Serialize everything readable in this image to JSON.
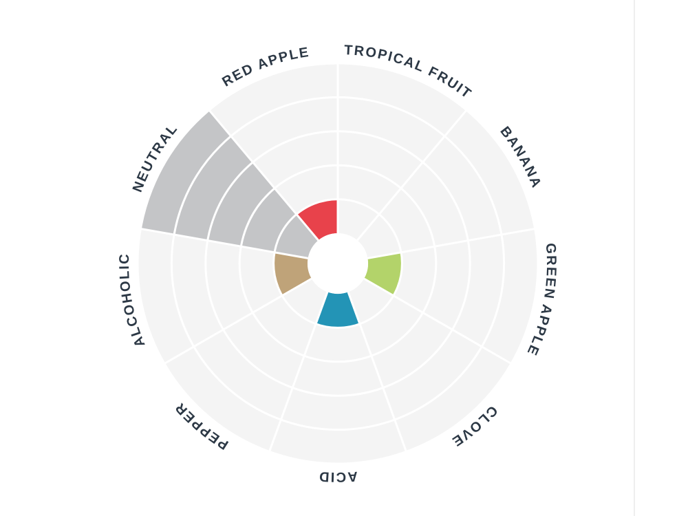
{
  "chart_data": {
    "type": "polar-bar",
    "categories": [
      "RED APPLE",
      "TROPICAL FRUIT",
      "BANANA",
      "GREEN APPLE",
      "CLOVE",
      "ACID",
      "PEPPER",
      "ALCOHOLIC",
      "NEUTRAL"
    ],
    "values": [
      1,
      0,
      0,
      1,
      0,
      1,
      0,
      1,
      5
    ],
    "colors": [
      "#e8424b",
      "#c4c5c7",
      "#c4c5c7",
      "#b3d36a",
      "#c4c5c7",
      "#2394b6",
      "#c4c5c7",
      "#bfa379",
      "#c4c5c7"
    ],
    "rlim": [
      0,
      5
    ],
    "rticks": [
      1,
      2,
      3,
      4,
      5
    ],
    "grid": true
  }
}
